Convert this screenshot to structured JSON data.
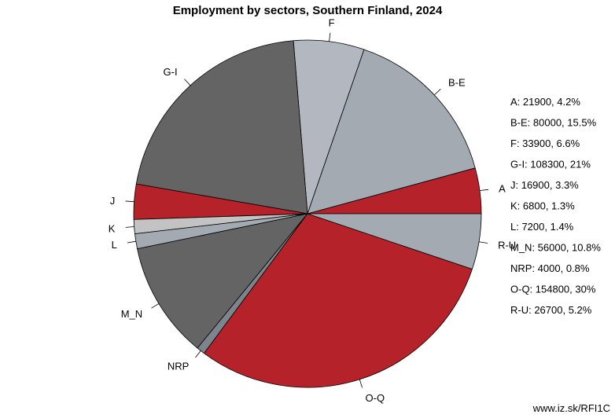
{
  "chart_data": {
    "type": "pie",
    "title": "Employment by sectors, Southern Finland, 2024",
    "slices": [
      {
        "label": "A",
        "value": 21900,
        "percent": "4.2%",
        "color": "#b5222a"
      },
      {
        "label": "B-E",
        "value": 80000,
        "percent": "15.5%",
        "color": "#a4aab2"
      },
      {
        "label": "F",
        "value": 33900,
        "percent": "6.6%",
        "color": "#b3b8c0"
      },
      {
        "label": "G-I",
        "value": 108300,
        "percent": "21%",
        "color": "#646464"
      },
      {
        "label": "J",
        "value": 16900,
        "percent": "3.3%",
        "color": "#b5222a"
      },
      {
        "label": "K",
        "value": 6800,
        "percent": "1.3%",
        "color": "#c3c3c3"
      },
      {
        "label": "L",
        "value": 7200,
        "percent": "1.4%",
        "color": "#a4aab2"
      },
      {
        "label": "M_N",
        "value": 56000,
        "percent": "10.8%",
        "color": "#646464"
      },
      {
        "label": "NRP",
        "value": 4000,
        "percent": "0.8%",
        "color": "#7d858c"
      },
      {
        "label": "O-Q",
        "value": 154800,
        "percent": "30%",
        "color": "#b5222a"
      },
      {
        "label": "R-U",
        "value": 26700,
        "percent": "5.2%",
        "color": "#a4aab2"
      }
    ],
    "legend_position": "right"
  },
  "source": "www.iz.sk/RFI1C"
}
